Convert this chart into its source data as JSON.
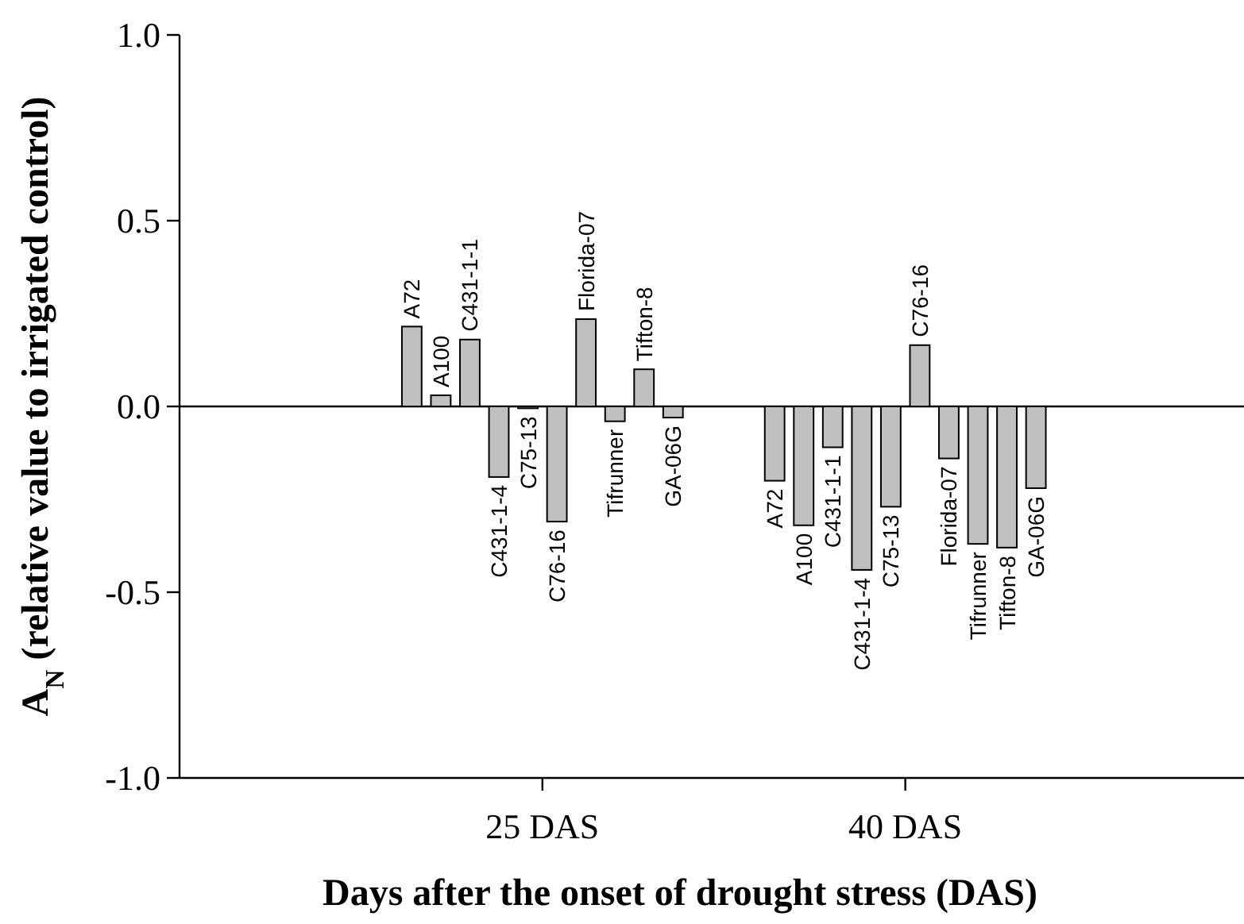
{
  "chart_data": {
    "type": "bar",
    "xlabel": "Days after the onset of drought stress (DAS)",
    "ylabel": "A$_{N}$ (relative value to irrigated control)",
    "x": [
      19.6,
      20.8,
      22,
      23.2,
      24.4,
      25.6,
      26.8,
      28,
      29.2,
      30.4,
      34.6,
      35.8,
      37,
      38.2,
      39.4,
      40.6,
      41.8,
      43,
      44.2,
      45.4
    ],
    "values": [
      0.215,
      0.03,
      0.18,
      -0.19,
      -0.005,
      -0.31,
      0.235,
      -0.04,
      0.1,
      -0.03,
      -0.2,
      -0.32,
      -0.11,
      -0.44,
      -0.27,
      0.165,
      -0.14,
      -0.37,
      -0.38,
      -0.22
    ],
    "color": "#c0c0c0",
    "xlim": [
      10,
      54
    ],
    "xticks": [
      {
        "value": 25,
        "label": "25 DAS"
      },
      {
        "value": 40,
        "label": "40 DAS"
      }
    ],
    "ylim": [
      -1,
      1
    ],
    "yticks": [
      {
        "value": -1,
        "label": "-1.0"
      },
      {
        "value": -0.5,
        "label": "-0.5"
      },
      {
        "value": 0,
        "label": "0.0"
      },
      {
        "value": 0.5,
        "label": "0.5"
      },
      {
        "value": 1,
        "label": "1.0"
      }
    ],
    "ref_lines": [
      {
        "axis": "y",
        "value": 0,
        "color": "#000000"
      }
    ],
    "annotations": [
      {
        "text": "A72",
        "x": 19.6,
        "y": 0.215
      },
      {
        "text": "A100",
        "x": 20.8,
        "y": 0.03
      },
      {
        "text": "C431-1-1",
        "x": 22,
        "y": 0.18
      },
      {
        "text": "C431-1-4",
        "x": 23.2,
        "y": -0.19
      },
      {
        "text": "C75-13",
        "x": 24.4,
        "y": -0.005
      },
      {
        "text": "C76-16",
        "x": 25.6,
        "y": -0.31
      },
      {
        "text": "Florida-07",
        "x": 26.8,
        "y": 0.235
      },
      {
        "text": "Tifrunner",
        "x": 28,
        "y": -0.04
      },
      {
        "text": "Tifton-8",
        "x": 29.2,
        "y": 0.1
      },
      {
        "text": "GA-06G",
        "x": 30.4,
        "y": -0.03
      },
      {
        "text": "A72",
        "x": 34.6,
        "y": -0.2
      },
      {
        "text": "A100",
        "x": 35.8,
        "y": -0.32
      },
      {
        "text": "C431-1-1",
        "x": 37,
        "y": -0.11
      },
      {
        "text": "C431-1-4",
        "x": 38.2,
        "y": -0.44
      },
      {
        "text": "C75-13",
        "x": 39.4,
        "y": -0.27
      },
      {
        "text": "C76-16",
        "x": 40.6,
        "y": 0.165
      },
      {
        "text": "Florida-07",
        "x": 41.8,
        "y": -0.14
      },
      {
        "text": "Tifrunner",
        "x": 43,
        "y": -0.37
      },
      {
        "text": "Tifton-8",
        "x": 44.2,
        "y": -0.38
      },
      {
        "text": "GA-06G",
        "x": 45.4,
        "y": -0.22
      }
    ]
  }
}
